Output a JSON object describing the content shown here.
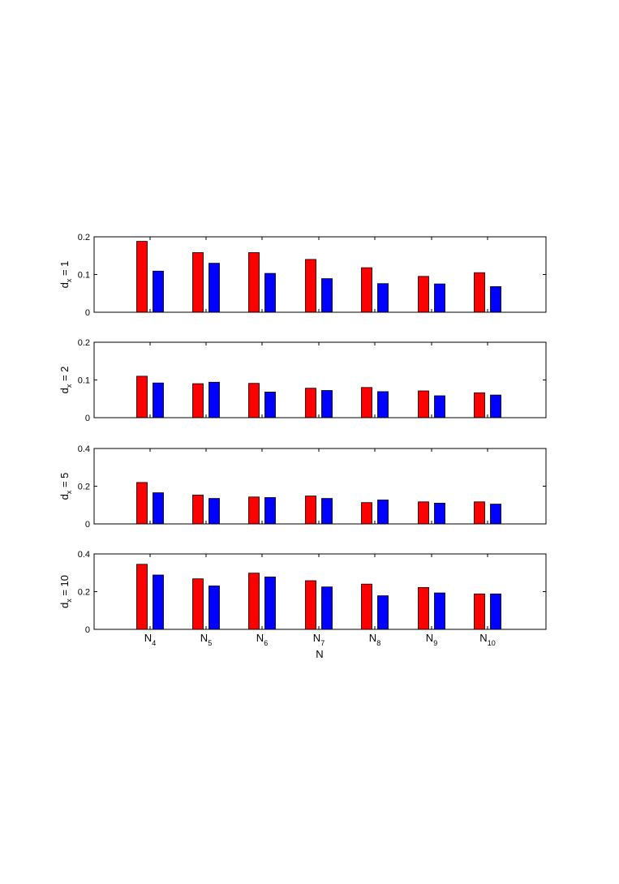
{
  "chart_data": [
    {
      "type": "bar",
      "ylabel_main": "d",
      "ylabel_sub": "x",
      "ylabel_rest": " = 1",
      "ylim": [
        0,
        0.2
      ],
      "yticks": [
        0,
        0.1,
        0.2
      ],
      "ytick_labels": [
        "0",
        "0.1",
        "0.2"
      ],
      "categories": [
        "N4",
        "N5",
        "N6",
        "N7",
        "N8",
        "N9",
        "N10"
      ],
      "series": [
        {
          "color": "#ff0000",
          "values": [
            0.188,
            0.158,
            0.158,
            0.14,
            0.118,
            0.095,
            0.105
          ]
        },
        {
          "color": "#0000ff",
          "values": [
            0.109,
            0.13,
            0.103,
            0.089,
            0.076,
            0.075,
            0.068
          ]
        }
      ]
    },
    {
      "type": "bar",
      "ylabel_main": "d",
      "ylabel_sub": "x",
      "ylabel_rest": " = 2",
      "ylim": [
        0,
        0.2
      ],
      "yticks": [
        0,
        0.1,
        0.2
      ],
      "ytick_labels": [
        "0",
        "0.1",
        "0.2"
      ],
      "categories": [
        "N4",
        "N5",
        "N6",
        "N7",
        "N8",
        "N9",
        "N10"
      ],
      "series": [
        {
          "color": "#ff0000",
          "values": [
            0.11,
            0.09,
            0.091,
            0.078,
            0.08,
            0.071,
            0.066
          ]
        },
        {
          "color": "#0000ff",
          "values": [
            0.092,
            0.094,
            0.068,
            0.072,
            0.069,
            0.058,
            0.06
          ]
        }
      ]
    },
    {
      "type": "bar",
      "ylabel_main": "d",
      "ylabel_sub": "x",
      "ylabel_rest": " = 5",
      "ylim": [
        0,
        0.4
      ],
      "yticks": [
        0,
        0.2,
        0.4
      ],
      "ytick_labels": [
        "0",
        "0.2",
        "0.4"
      ],
      "categories": [
        "N4",
        "N5",
        "N6",
        "N7",
        "N8",
        "N9",
        "N10"
      ],
      "series": [
        {
          "color": "#ff0000",
          "values": [
            0.22,
            0.153,
            0.143,
            0.148,
            0.113,
            0.117,
            0.117
          ]
        },
        {
          "color": "#0000ff",
          "values": [
            0.165,
            0.135,
            0.14,
            0.135,
            0.127,
            0.11,
            0.105
          ]
        }
      ]
    },
    {
      "type": "bar",
      "ylabel_main": "d",
      "ylabel_sub": "x",
      "ylabel_rest": " = 10",
      "ylim": [
        0,
        0.4
      ],
      "yticks": [
        0,
        0.2,
        0.4
      ],
      "ytick_labels": [
        "0",
        "0.2",
        "0.4"
      ],
      "categories": [
        "N4",
        "N5",
        "N6",
        "N7",
        "N8",
        "N9",
        "N10"
      ],
      "series": [
        {
          "color": "#ff0000",
          "values": [
            0.345,
            0.268,
            0.298,
            0.258,
            0.24,
            0.222,
            0.188
          ]
        },
        {
          "color": "#0000ff",
          "values": [
            0.288,
            0.23,
            0.278,
            0.225,
            0.178,
            0.193,
            0.188
          ]
        }
      ]
    }
  ],
  "x_categories": [
    {
      "main": "N",
      "sub": "4"
    },
    {
      "main": "N",
      "sub": "5"
    },
    {
      "main": "N",
      "sub": "6"
    },
    {
      "main": "N",
      "sub": "7"
    },
    {
      "main": "N",
      "sub": "8"
    },
    {
      "main": "N",
      "sub": "9"
    },
    {
      "main": "N",
      "sub": "10"
    }
  ],
  "xlabel": "N"
}
